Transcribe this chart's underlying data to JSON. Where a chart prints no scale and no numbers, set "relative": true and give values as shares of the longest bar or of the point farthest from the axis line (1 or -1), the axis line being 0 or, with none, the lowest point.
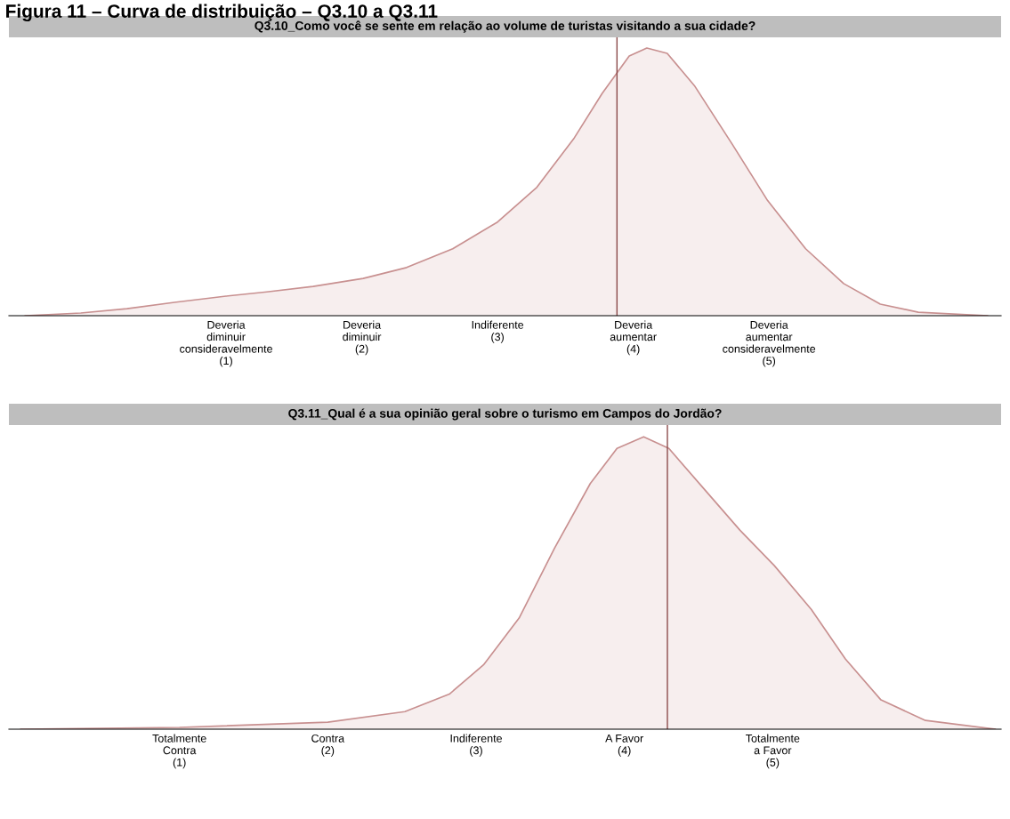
{
  "chart_data": [
    {
      "type": "area",
      "title": "Q3.10_Como você se sente em relação ao volume de turistas visitando a sua cidade?",
      "relative": true,
      "annotations": [
        "Figura 11 – Curva de distribuição – Q3.10 a Q3.11"
      ],
      "x": [
        -0.48,
        -0.07,
        0.27,
        0.62,
        1,
        1.3,
        1.64,
        2.01,
        2.33,
        2.67,
        3.0,
        3.29,
        3.56,
        3.77,
        3.97,
        4.1,
        4.25,
        4.45,
        4.73,
        4.99,
        5.27,
        5.55,
        5.82,
        6.1,
        6.61
      ],
      "series": [
        {
          "color": "#c89090",
          "values": [
            0,
            0.01,
            0.026,
            0.05,
            0.073,
            0.089,
            0.109,
            0.139,
            0.18,
            0.25,
            0.35,
            0.48,
            0.66,
            0.83,
            0.97,
            1.0,
            0.98,
            0.86,
            0.64,
            0.43,
            0.25,
            0.12,
            0.043,
            0.013,
            0
          ]
        }
      ],
      "xlim": [
        -0.6,
        6.71
      ],
      "xticks": [
        {
          "value": 1,
          "label": "Deveria\ndiminuir\nconsideravelmente\n(1)"
        },
        {
          "value": 2,
          "label": "Deveria\ndiminuir\n(2)"
        },
        {
          "value": 3,
          "label": "Indiferente\n(3)"
        },
        {
          "value": 4,
          "label": "Deveria\naumentar\n(4)"
        },
        {
          "value": 5,
          "label": "Deveria\naumentar\nconsideravelmente\n(5)"
        }
      ],
      "ref_lines": [
        {
          "axis": "x",
          "value": 3.88,
          "color": "#8b4a4a"
        }
      ],
      "grid": false,
      "legend": false
    },
    {
      "type": "area",
      "title": "Q3.11_Qual é a sua opinião geral sobre o turismo em Campos do Jordão?",
      "relative": true,
      "x": [
        -0.07,
        1,
        2,
        2.52,
        2.82,
        3.05,
        3.29,
        3.53,
        3.77,
        3.95,
        4.13,
        4.3,
        4.54,
        4.78,
        5.01,
        5.26,
        5.49,
        5.73,
        6.03,
        6.5
      ],
      "series": [
        {
          "color": "#c89090",
          "values": [
            0,
            0.006,
            0.024,
            0.06,
            0.12,
            0.22,
            0.38,
            0.62,
            0.84,
            0.96,
            1.0,
            0.96,
            0.82,
            0.68,
            0.56,
            0.41,
            0.24,
            0.1,
            0.03,
            0
          ]
        }
      ],
      "xlim": [
        -0.15,
        6.54
      ],
      "xticks": [
        {
          "value": 1,
          "label": "Totalmente\nContra\n(1)"
        },
        {
          "value": 2,
          "label": "Contra\n(2)"
        },
        {
          "value": 3,
          "label": "Indiferente\n(3)"
        },
        {
          "value": 4,
          "label": "A Favor\n(4)"
        },
        {
          "value": 5,
          "label": "Totalmente\na Favor\n(5)"
        }
      ],
      "ref_lines": [
        {
          "axis": "x",
          "value": 4.29,
          "color": "#8b4a4a"
        }
      ],
      "grid": false,
      "legend": false
    }
  ]
}
